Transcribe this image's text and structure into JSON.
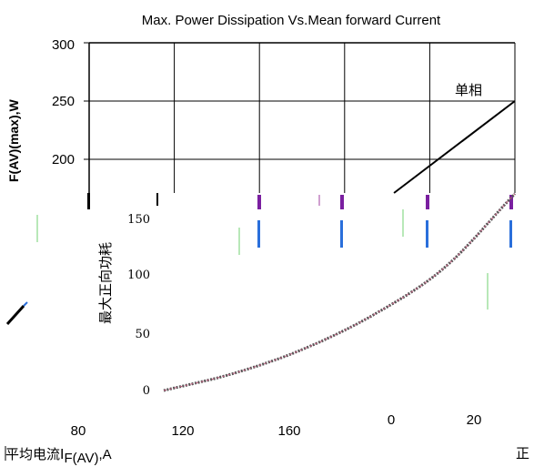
{
  "chart_data": {
    "type": "line",
    "title": "Max. Power Dissipation Vs.Mean forward Current",
    "ylabel": "PᴋF(AV)(max),W",
    "ylabel_visible": "F(AV)(max),W",
    "ylabel_lower": "最大正向功耗",
    "xlabel": "平均电流I",
    "xlabel_sub": "F(AV)",
    "xlabel_unit": ",A",
    "upper": {
      "y_ticks": [
        "300",
        "250",
        "200"
      ],
      "ylim": [
        200,
        300
      ],
      "series_label": "单相",
      "series": [
        {
          "name": "单相",
          "x": [
            4.1,
            5.0
          ],
          "y": [
            200,
            250
          ]
        }
      ]
    },
    "lower": {
      "y_ticks": [
        "150",
        "100",
        "50",
        "0"
      ],
      "ylim": [
        0,
        150
      ],
      "series": [
        {
          "x": [
            0,
            1,
            2,
            3,
            4,
            5
          ],
          "y": [
            0,
            14,
            34,
            62,
            100,
            160
          ]
        }
      ]
    },
    "x_ticks": [
      "80",
      "120",
      "160"
    ],
    "x_ticks_right": [
      "0",
      "20"
    ],
    "edge_glyph": "正",
    "colors": {
      "line": "#000000",
      "grid": "#000000",
      "curve": "#555555",
      "accent": "#7a1fa0"
    }
  }
}
